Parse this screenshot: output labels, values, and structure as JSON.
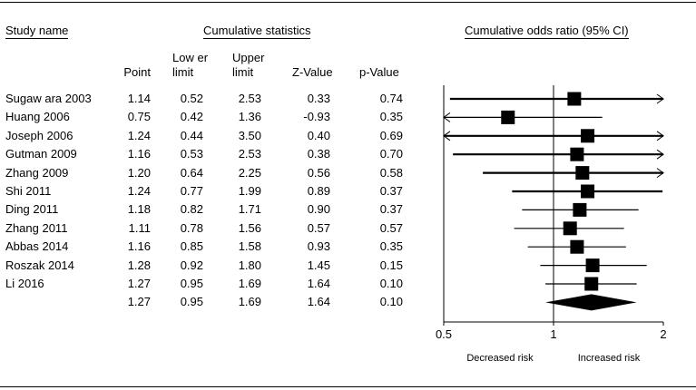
{
  "headers": {
    "study_name": "Study name",
    "cumulative_statistics": "Cumulative statistics",
    "cumulative_odds_ratio": "Cumulative odds ratio (95% CI)"
  },
  "columns": {
    "point": "Point",
    "lower_1": "Low er",
    "lower_2": "limit",
    "upper_1": "Upper",
    "upper_2": "limit",
    "z": "Z-Value",
    "p": "p-Value"
  },
  "rows": [
    {
      "study": "Sugaw ara 2003",
      "point": "1.14",
      "lower": "0.52",
      "upper": "2.53",
      "z": "0.33",
      "p": "0.74"
    },
    {
      "study": "Huang 2006",
      "point": "0.75",
      "lower": "0.42",
      "upper": "1.36",
      "z": "-0.93",
      "p": "0.35"
    },
    {
      "study": "Joseph 2006",
      "point": "1.24",
      "lower": "0.44",
      "upper": "3.50",
      "z": "0.40",
      "p": "0.69"
    },
    {
      "study": "Gutman 2009",
      "point": "1.16",
      "lower": "0.53",
      "upper": "2.53",
      "z": "0.38",
      "p": "0.70"
    },
    {
      "study": "Zhang 2009",
      "point": "1.20",
      "lower": "0.64",
      "upper": "2.25",
      "z": "0.56",
      "p": "0.58"
    },
    {
      "study": "Shi 2011",
      "point": "1.24",
      "lower": "0.77",
      "upper": "1.99",
      "z": "0.89",
      "p": "0.37"
    },
    {
      "study": "Ding 2011",
      "point": "1.18",
      "lower": "0.82",
      "upper": "1.71",
      "z": "0.90",
      "p": "0.37"
    },
    {
      "study": "Zhang 2011",
      "point": "1.11",
      "lower": "0.78",
      "upper": "1.56",
      "z": "0.57",
      "p": "0.57"
    },
    {
      "study": "Abbas 2014",
      "point": "1.16",
      "lower": "0.85",
      "upper": "1.58",
      "z": "0.93",
      "p": "0.35"
    },
    {
      "study": "Roszak 2014",
      "point": "1.28",
      "lower": "0.92",
      "upper": "1.80",
      "z": "1.45",
      "p": "0.15"
    },
    {
      "study": "Li 2016",
      "point": "1.27",
      "lower": "0.95",
      "upper": "1.69",
      "z": "1.64",
      "p": "0.10"
    },
    {
      "study": "",
      "point": "1.27",
      "lower": "0.95",
      "upper": "1.69",
      "z": "1.64",
      "p": "0.10"
    }
  ],
  "chart_data": {
    "type": "scatter",
    "x_scale": "log",
    "xlim": [
      0.5,
      2
    ],
    "ticks": [
      {
        "value": 0.5,
        "label": "0.5"
      },
      {
        "value": 1,
        "label": "1"
      },
      {
        "value": 2,
        "label": "2"
      }
    ],
    "xlabel_left": "Decreased risk",
    "xlabel_right": "Increased risk",
    "reference_line": 1,
    "studies": [
      {
        "point": 1.14,
        "lower": 0.52,
        "upper": 2.53
      },
      {
        "point": 0.75,
        "lower": 0.42,
        "upper": 1.36
      },
      {
        "point": 1.24,
        "lower": 0.44,
        "upper": 3.5
      },
      {
        "point": 1.16,
        "lower": 0.53,
        "upper": 2.53
      },
      {
        "point": 1.2,
        "lower": 0.64,
        "upper": 2.25
      },
      {
        "point": 1.24,
        "lower": 0.77,
        "upper": 1.99
      },
      {
        "point": 1.18,
        "lower": 0.82,
        "upper": 1.71
      },
      {
        "point": 1.11,
        "lower": 0.78,
        "upper": 1.56
      },
      {
        "point": 1.16,
        "lower": 0.85,
        "upper": 1.58
      },
      {
        "point": 1.28,
        "lower": 0.92,
        "upper": 1.8
      },
      {
        "point": 1.27,
        "lower": 0.95,
        "upper": 1.69
      }
    ],
    "summary": {
      "point": 1.27,
      "lower": 0.95,
      "upper": 1.69
    }
  }
}
